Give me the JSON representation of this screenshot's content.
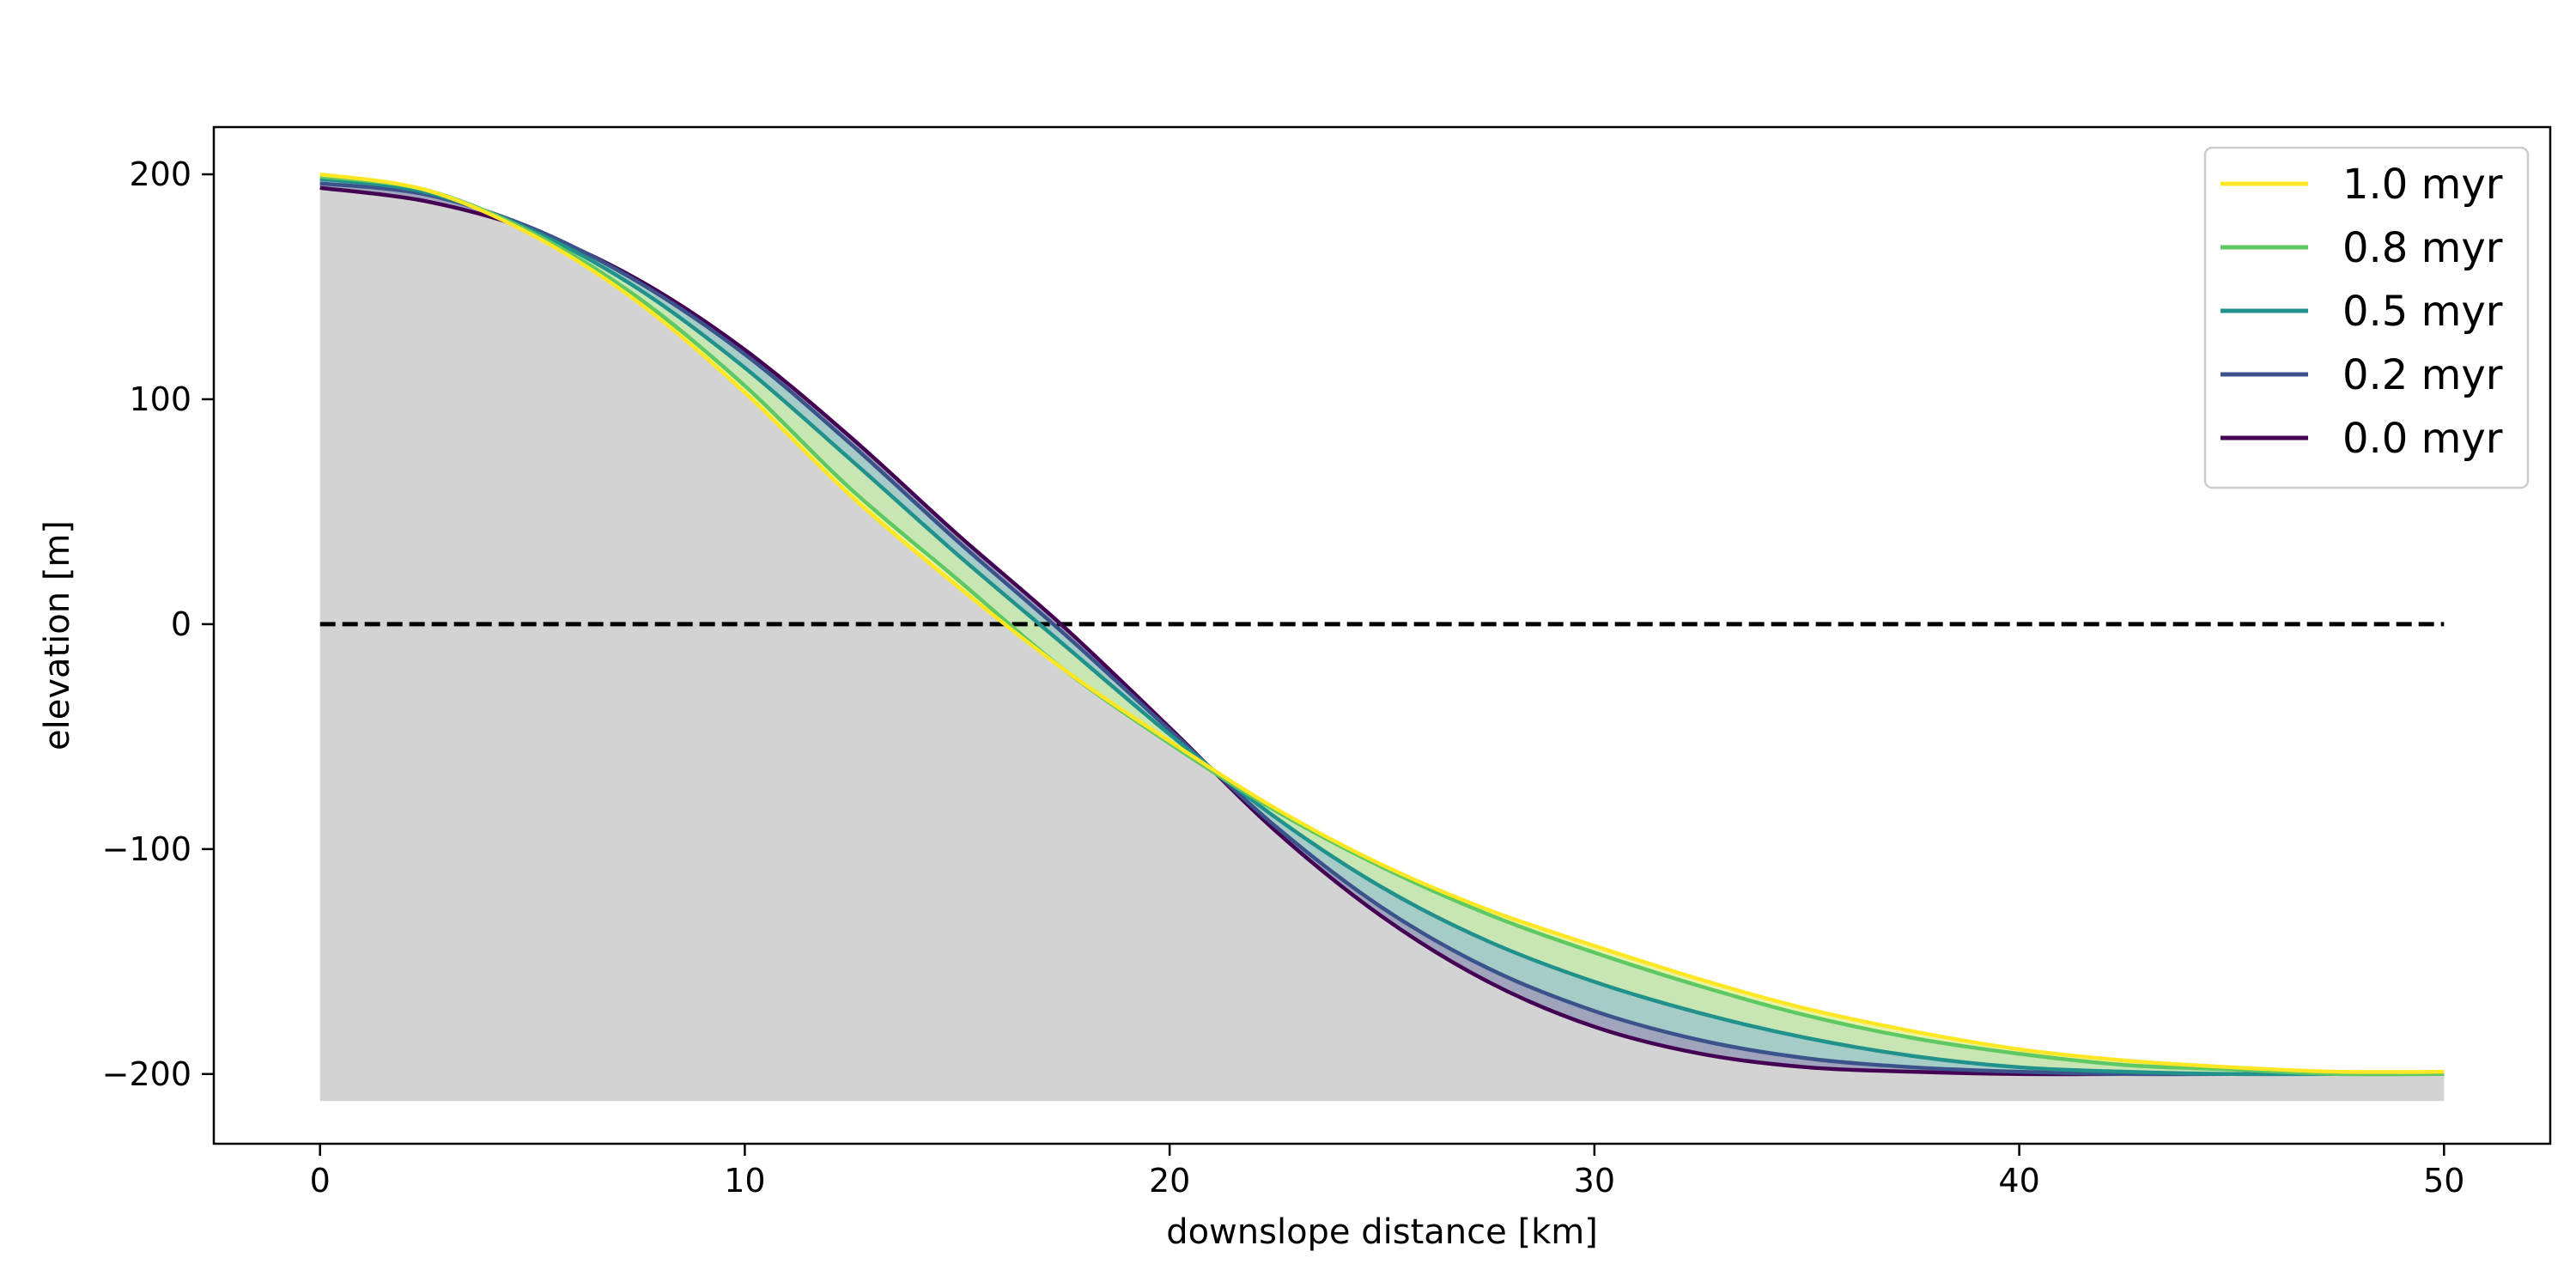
{
  "chart_data": {
    "type": "line",
    "title": "",
    "xlabel": "downslope distance [km]",
    "ylabel": "elevation [m]",
    "xlim": [
      -2.5,
      52.5
    ],
    "ylim": [
      -231,
      221
    ],
    "xticks": [
      0,
      10,
      20,
      30,
      40,
      50
    ],
    "yticks": [
      -200,
      -100,
      0,
      100,
      200
    ],
    "xtick_labels": [
      "0",
      "10",
      "20",
      "30",
      "40",
      "50"
    ],
    "ytick_labels": [
      "−200",
      "−100",
      "0",
      "100",
      "200"
    ],
    "grid": false,
    "legend_position": "top-right",
    "basement_fill_color": "#d3d3d3",
    "basement_bottom": -212,
    "sea_level": {
      "y": 0,
      "style": "dashed",
      "color": "#000000"
    },
    "x": [
      0,
      2.5,
      5,
      7.5,
      10,
      12.5,
      15,
      17.5,
      20,
      22.5,
      25,
      27.5,
      30,
      32.5,
      35,
      37.5,
      40,
      42.5,
      45,
      47.5,
      50
    ],
    "series": [
      {
        "name": "1.0 myr",
        "color": "#fde725",
        "values": [
          200,
          193,
          173,
          143,
          103,
          57,
          17,
          -20,
          -52,
          -82,
          -107,
          -127,
          -143,
          -158,
          -171,
          -181,
          -189,
          -194,
          -197,
          -199,
          -199
        ]
      },
      {
        "name": "0.8 myr",
        "color": "#5ec962",
        "values": [
          199,
          193,
          174,
          145,
          106,
          60,
          20,
          -20,
          -53,
          -83,
          -108,
          -129,
          -146,
          -161,
          -174,
          -184,
          -191,
          -196,
          -198,
          -200,
          -200
        ]
      },
      {
        "name": "0.5 myr",
        "color": "#21918c",
        "values": [
          198,
          192,
          175,
          149,
          114,
          73,
          31,
          -9,
          -49,
          -86,
          -117,
          -141,
          -159,
          -173,
          -184,
          -192,
          -197,
          -199,
          -200,
          -200,
          -200
        ]
      },
      {
        "name": "0.2 myr",
        "color": "#3b528b",
        "values": [
          196,
          191,
          176,
          152,
          120,
          80,
          37,
          -4,
          -47,
          -90,
          -126,
          -153,
          -172,
          -185,
          -193,
          -197,
          -199,
          -200,
          -200,
          -200,
          -200
        ]
      },
      {
        "name": "0.0 myr",
        "color": "#440154",
        "values": [
          194,
          188,
          175,
          153,
          122,
          83,
          40,
          -1,
          -46,
          -92,
          -130,
          -159,
          -179,
          -191,
          -197,
          -199,
          -200,
          -200,
          -200,
          -200,
          -200
        ]
      }
    ],
    "between_fills": [
      {
        "upper": "1.0 myr",
        "lower": "0.8 myr",
        "color": "#e8f3a4"
      },
      {
        "upper": "0.8 myr",
        "lower": "0.5 myr",
        "color": "#c8e6b4"
      },
      {
        "upper": "0.5 myr",
        "lower": "0.2 myr",
        "color": "#a6ccc8"
      },
      {
        "upper": "0.2 myr",
        "lower": "0.0 myr",
        "color": "#9fa3bb"
      }
    ]
  }
}
